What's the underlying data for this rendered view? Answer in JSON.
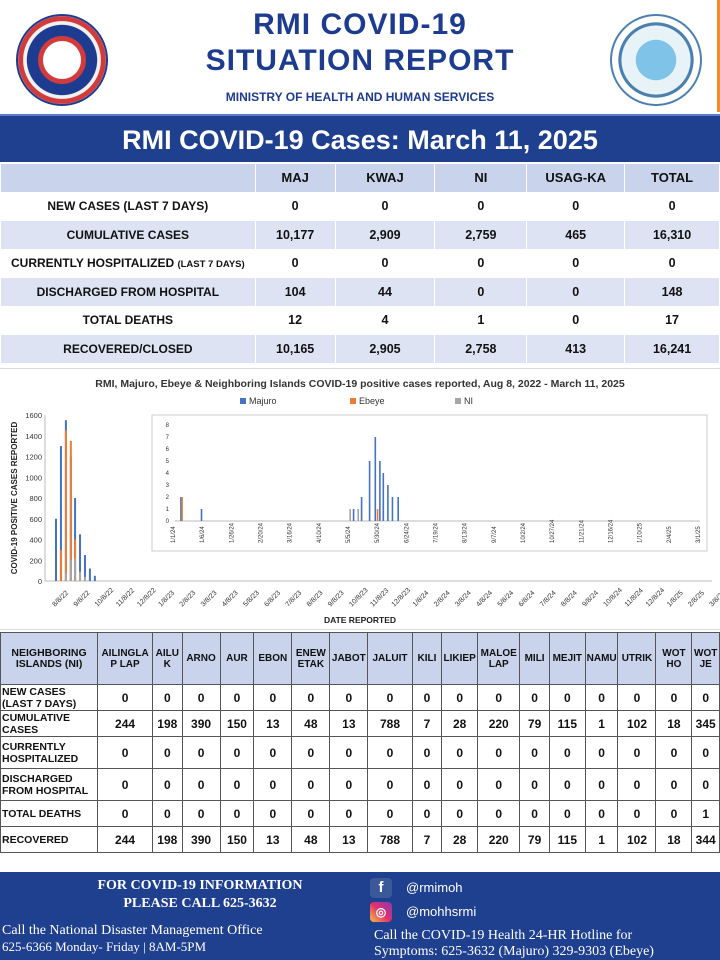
{
  "header": {
    "title_line1": "RMI COVID-19",
    "title_line2": "SITUATION REPORT",
    "ministry": "MINISTRY OF HEALTH AND HUMAN SERVICES"
  },
  "banner": "RMI COVID-19 Cases: March 11, 2025",
  "summary": {
    "columns": [
      "MAJ",
      "KWAJ",
      "NI",
      "USAG-KA",
      "TOTAL"
    ],
    "rows": [
      {
        "label": "NEW CASES (LAST 7 DAYS)",
        "values": [
          "0",
          "0",
          "0",
          "0",
          "0"
        ]
      },
      {
        "label": "CUMULATIVE CASES",
        "values": [
          "10,177",
          "2,909",
          "2,759",
          "465",
          "16,310"
        ]
      },
      {
        "label": "CURRENTLY HOSPITALIZED",
        "label_suffix": "(LAST 7 DAYS)",
        "values": [
          "0",
          "0",
          "0",
          "0",
          "0"
        ]
      },
      {
        "label": "DISCHARGED FROM HOSPITAL",
        "values": [
          "104",
          "44",
          "0",
          "0",
          "148"
        ]
      },
      {
        "label": "TOTAL DEATHS",
        "values": [
          "12",
          "4",
          "1",
          "0",
          "17"
        ]
      },
      {
        "label": "RECOVERED/CLOSED",
        "values": [
          "10,165",
          "2,905",
          "2,758",
          "413",
          "16,241"
        ]
      }
    ]
  },
  "chart_data": [
    {
      "type": "bar",
      "title": "RMI, Majuro, Ebeye & Neighboring Islands COVID-19 positive cases reported, Aug 8, 2022 - March 11, 2025",
      "ylabel": "COVID-19 POSITIVE CASES REPORTED",
      "xlabel": "DATE REPORTED",
      "ylim": [
        0,
        1600
      ],
      "yticks": [
        "0",
        "200",
        "400",
        "600",
        "800",
        "1000",
        "1200",
        "1400",
        "1600"
      ],
      "xticks": [
        "8/8/22",
        "9/8/22",
        "10/8/22",
        "11/8/22",
        "12/8/22",
        "1/8/23",
        "2/8/23",
        "3/8/23",
        "4/8/23",
        "5/8/23",
        "6/8/23",
        "7/8/23",
        "8/8/23",
        "9/8/23",
        "10/8/23",
        "11/8/23",
        "12/8/23",
        "1/8/24",
        "2/8/24",
        "3/8/24",
        "4/8/24",
        "5/8/24",
        "6/8/24",
        "7/8/24",
        "8/8/24",
        "9/8/24",
        "10/8/24",
        "11/8/24",
        "12/8/24",
        "1/8/25",
        "2/8/25",
        "3/8/25"
      ],
      "legend": [
        "Majuro",
        "Ebeye",
        "NI"
      ],
      "legend_position": "top",
      "colors": {
        "Majuro": "#4472c4",
        "Ebeye": "#ed7d31",
        "NI": "#a5a5a5"
      },
      "series": [
        {
          "name": "Majuro",
          "x": [
            "8/8/22",
            "8/15/22",
            "8/22/22",
            "8/29/22",
            "9/5/22",
            "9/12/22",
            "9/19/22",
            "9/26/22",
            "10/3/22"
          ],
          "values": [
            600,
            1300,
            1550,
            1200,
            800,
            450,
            250,
            120,
            50
          ]
        },
        {
          "name": "Ebeye",
          "x": [
            "8/15/22",
            "8/22/22",
            "8/29/22",
            "9/5/22"
          ],
          "values": [
            300,
            1450,
            1350,
            400
          ]
        },
        {
          "name": "NI",
          "x": [
            "8/22/22",
            "8/29/22",
            "9/5/22",
            "9/12/22",
            "9/19/22"
          ],
          "values": [
            80,
            200,
            220,
            90,
            40
          ]
        }
      ]
    },
    {
      "type": "bar",
      "title": "",
      "ylim": [
        0,
        8
      ],
      "yticks": [
        "0",
        "1",
        "2",
        "3",
        "4",
        "5",
        "6",
        "7",
        "8"
      ],
      "xticks": [
        "1/1/24",
        "1/6/24",
        "1/26/24",
        "2/20/24",
        "3/16/24",
        "4/10/24",
        "5/5/24",
        "5/30/24",
        "6/24/24",
        "7/19/24",
        "8/13/24",
        "9/7/24",
        "10/2/24",
        "10/27/24",
        "11/21/24",
        "12/16/24",
        "1/10/25",
        "2/4/25",
        "3/1/25"
      ],
      "series": [
        {
          "name": "Majuro",
          "x": [
            "1/2/24",
            "1/20/24",
            "6/1/24",
            "6/8/24",
            "6/15/24",
            "6/20/24",
            "6/24/24",
            "6/27/24",
            "7/1/24",
            "7/5/24",
            "7/10/24"
          ],
          "values": [
            2,
            1,
            1,
            2,
            5,
            7,
            5,
            4,
            3,
            2,
            2
          ]
        },
        {
          "name": "Ebeye",
          "x": [
            "1/3/24",
            "6/22/24"
          ],
          "values": [
            2,
            1
          ]
        },
        {
          "name": "NI",
          "x": [
            "5/29/24",
            "6/5/24"
          ],
          "values": [
            1,
            1
          ]
        }
      ]
    }
  ],
  "ni_table": {
    "corner": "NEIGHBORING ISLANDS (NI)",
    "islands": [
      "AILINGLAP LAP",
      "AILUK",
      "ARNO",
      "AUR",
      "EBON",
      "ENEWETAK",
      "JABOT",
      "JALUIT",
      "KILI",
      "LIKIEP",
      "MALOELAP",
      "MILI",
      "MEJIT",
      "NAMU",
      "UTRIK",
      "WOTHO",
      "WOTJE"
    ],
    "islands_display": [
      "AILINGLA P LAP",
      "AILU K",
      "ARNO",
      "AUR",
      "EBON",
      "ENEW ETAK",
      "JABOT",
      "JALUIT",
      "KILI",
      "LIKIEP",
      "MALOE LAP",
      "MILI",
      "MEJIT",
      "NAMU",
      "UTRIK",
      "WOT HO",
      "WOT JE"
    ],
    "rows": [
      {
        "label": "NEW CASES (LAST 7 DAYS)",
        "values": [
          "0",
          "0",
          "0",
          "0",
          "0",
          "0",
          "0",
          "0",
          "0",
          "0",
          "0",
          "0",
          "0",
          "0",
          "0",
          "0",
          "0"
        ]
      },
      {
        "label": "CUMULATIVE CASES",
        "values": [
          "244",
          "198",
          "390",
          "150",
          "13",
          "48",
          "13",
          "788",
          "7",
          "28",
          "220",
          "79",
          "115",
          "1",
          "102",
          "18",
          "345"
        ]
      },
      {
        "label": "CURRENTLY HOSPITALIZED",
        "values": [
          "0",
          "0",
          "0",
          "0",
          "0",
          "0",
          "0",
          "0",
          "0",
          "0",
          "0",
          "0",
          "0",
          "0",
          "0",
          "0",
          "0"
        ]
      },
      {
        "label": "DISCHARGED FROM HOSPITAL",
        "values": [
          "0",
          "0",
          "0",
          "0",
          "0",
          "0",
          "0",
          "0",
          "0",
          "0",
          "0",
          "0",
          "0",
          "0",
          "0",
          "0",
          "0"
        ]
      },
      {
        "label": "TOTAL DEATHS",
        "values": [
          "0",
          "0",
          "0",
          "0",
          "0",
          "0",
          "0",
          "0",
          "0",
          "0",
          "0",
          "0",
          "0",
          "0",
          "0",
          "0",
          "1"
        ]
      },
      {
        "label": "RECOVERED",
        "values": [
          "244",
          "198",
          "390",
          "150",
          "13",
          "48",
          "13",
          "788",
          "7",
          "28",
          "220",
          "79",
          "115",
          "1",
          "102",
          "18",
          "344"
        ]
      }
    ]
  },
  "footer": {
    "info_line1": "FOR COVID-19 INFORMATION",
    "info_line2": "PLEASE CALL 625-3632",
    "national_line1": "Call the National Disaster Management Office",
    "national_line2": "625-6366 Monday- Friday | 8AM-5PM",
    "facebook_handle": "@rmimoh",
    "instagram_handle": "@mohhsrmi",
    "hotline_line1": "Call the COVID-19 Health 24-HR Hotline for",
    "hotline_line2": "Symptoms: 625-3632 (Majuro)  329-9303  (Ebeye)"
  }
}
